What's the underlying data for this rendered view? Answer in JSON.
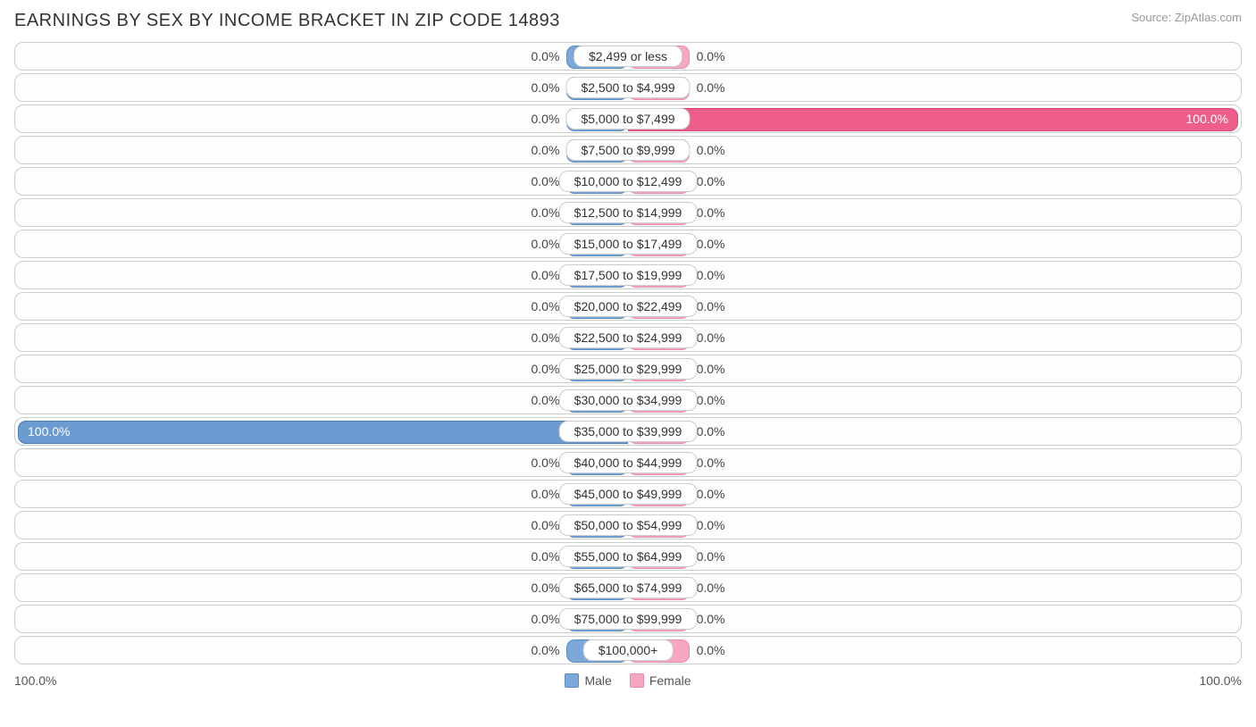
{
  "title": "EARNINGS BY SEX BY INCOME BRACKET IN ZIP CODE 14893",
  "source": "Source: ZipAtlas.com",
  "axis_left": "100.0%",
  "axis_right": "100.0%",
  "legend": {
    "male": "Male",
    "female": "Female"
  },
  "colors": {
    "male_fill": "#7ba7d9",
    "male_border": "#5a8bc4",
    "male_full_fill": "#6b9bd1",
    "male_full_border": "#4a7db8",
    "female_fill": "#f5a8c0",
    "female_border": "#e88aa8",
    "female_full_fill": "#ed5f8a",
    "female_full_border": "#d94876",
    "track_border": "#cccccc",
    "text": "#444444",
    "text_inside": "#ffffff",
    "title_color": "#333333",
    "source_color": "#999999"
  },
  "default_bar_width_pct": 10,
  "chart": {
    "type": "diverging-bar",
    "rows": [
      {
        "label": "$2,499 or less",
        "male_pct": 0.0,
        "female_pct": 0.0,
        "male_text": "0.0%",
        "female_text": "0.0%"
      },
      {
        "label": "$2,500 to $4,999",
        "male_pct": 0.0,
        "female_pct": 0.0,
        "male_text": "0.0%",
        "female_text": "0.0%"
      },
      {
        "label": "$5,000 to $7,499",
        "male_pct": 0.0,
        "female_pct": 100.0,
        "male_text": "0.0%",
        "female_text": "100.0%"
      },
      {
        "label": "$7,500 to $9,999",
        "male_pct": 0.0,
        "female_pct": 0.0,
        "male_text": "0.0%",
        "female_text": "0.0%"
      },
      {
        "label": "$10,000 to $12,499",
        "male_pct": 0.0,
        "female_pct": 0.0,
        "male_text": "0.0%",
        "female_text": "0.0%"
      },
      {
        "label": "$12,500 to $14,999",
        "male_pct": 0.0,
        "female_pct": 0.0,
        "male_text": "0.0%",
        "female_text": "0.0%"
      },
      {
        "label": "$15,000 to $17,499",
        "male_pct": 0.0,
        "female_pct": 0.0,
        "male_text": "0.0%",
        "female_text": "0.0%"
      },
      {
        "label": "$17,500 to $19,999",
        "male_pct": 0.0,
        "female_pct": 0.0,
        "male_text": "0.0%",
        "female_text": "0.0%"
      },
      {
        "label": "$20,000 to $22,499",
        "male_pct": 0.0,
        "female_pct": 0.0,
        "male_text": "0.0%",
        "female_text": "0.0%"
      },
      {
        "label": "$22,500 to $24,999",
        "male_pct": 0.0,
        "female_pct": 0.0,
        "male_text": "0.0%",
        "female_text": "0.0%"
      },
      {
        "label": "$25,000 to $29,999",
        "male_pct": 0.0,
        "female_pct": 0.0,
        "male_text": "0.0%",
        "female_text": "0.0%"
      },
      {
        "label": "$30,000 to $34,999",
        "male_pct": 0.0,
        "female_pct": 0.0,
        "male_text": "0.0%",
        "female_text": "0.0%"
      },
      {
        "label": "$35,000 to $39,999",
        "male_pct": 100.0,
        "female_pct": 0.0,
        "male_text": "100.0%",
        "female_text": "0.0%"
      },
      {
        "label": "$40,000 to $44,999",
        "male_pct": 0.0,
        "female_pct": 0.0,
        "male_text": "0.0%",
        "female_text": "0.0%"
      },
      {
        "label": "$45,000 to $49,999",
        "male_pct": 0.0,
        "female_pct": 0.0,
        "male_text": "0.0%",
        "female_text": "0.0%"
      },
      {
        "label": "$50,000 to $54,999",
        "male_pct": 0.0,
        "female_pct": 0.0,
        "male_text": "0.0%",
        "female_text": "0.0%"
      },
      {
        "label": "$55,000 to $64,999",
        "male_pct": 0.0,
        "female_pct": 0.0,
        "male_text": "0.0%",
        "female_text": "0.0%"
      },
      {
        "label": "$65,000 to $74,999",
        "male_pct": 0.0,
        "female_pct": 0.0,
        "male_text": "0.0%",
        "female_text": "0.0%"
      },
      {
        "label": "$75,000 to $99,999",
        "male_pct": 0.0,
        "female_pct": 0.0,
        "male_text": "0.0%",
        "female_text": "0.0%"
      },
      {
        "label": "$100,000+",
        "male_pct": 0.0,
        "female_pct": 0.0,
        "male_text": "0.0%",
        "female_text": "0.0%"
      }
    ]
  }
}
